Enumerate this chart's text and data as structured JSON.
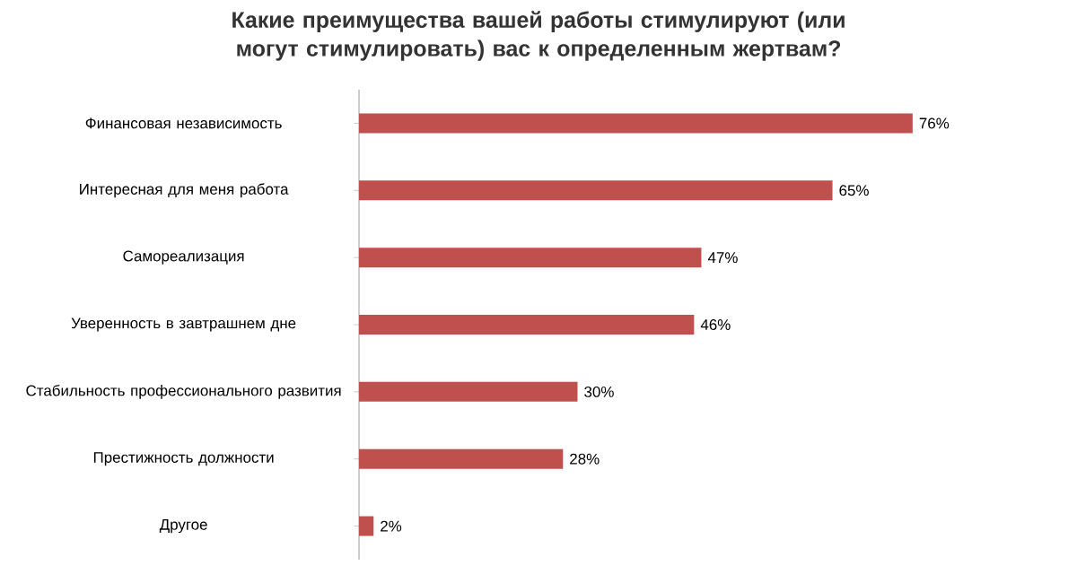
{
  "chart_data": {
    "type": "bar",
    "orientation": "horizontal",
    "title": "Какие преимущества вашей работы стимулируют (или могут стимулировать) вас к определенным жертвам?",
    "categories": [
      "Финансовая независимость",
      "Интересная для меня работа",
      "Самореализация",
      "Уверенность в завтрашнем дне",
      "Стабильность профессионального развития",
      "Престижность должности",
      "Другое"
    ],
    "values": [
      76,
      65,
      47,
      46,
      30,
      28,
      2
    ],
    "value_labels": [
      "76%",
      "65%",
      "47%",
      "46%",
      "30%",
      "28%",
      "2%"
    ],
    "color": "#c0504d"
  }
}
